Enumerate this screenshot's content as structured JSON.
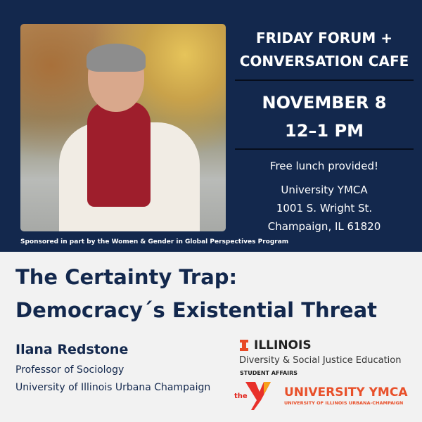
{
  "event": {
    "series": [
      "FRIDAY FORUM +",
      "CONVERSATION CAFE"
    ],
    "date": "NOVEMBER 8",
    "time": "12–1 PM",
    "lunch": "Free lunch provided!",
    "venue": [
      "University YMCA",
      "1001 S. Wright St.",
      "Champaign, IL 61820"
    ],
    "sponsor": "Sponsored in part by the Women & Gender in Global Perspectives Program"
  },
  "talk": {
    "title": [
      "The Certainty Trap:",
      "Democracy´s Existential Threat"
    ],
    "speaker": "Ilana Redstone",
    "role": "Professor of Sociology",
    "affiliation": "University of Illinois Urbana Champaign"
  },
  "logos": {
    "illinois": "ILLINOIS",
    "dsje": "Diversity & Social Justice Education",
    "student_affairs": "STUDENT AFFAIRS",
    "ymca_the": "the",
    "ymca": "UNIVERSITY YMCA",
    "ymca_sub": "UNIVERSITY OF ILLINOIS URBANA-CHAMPAIGN"
  },
  "colors": {
    "navy": "#13284d",
    "orange": "#e8502a",
    "illinois_orange": "#e84a27",
    "bg": "#f2f2f2"
  }
}
